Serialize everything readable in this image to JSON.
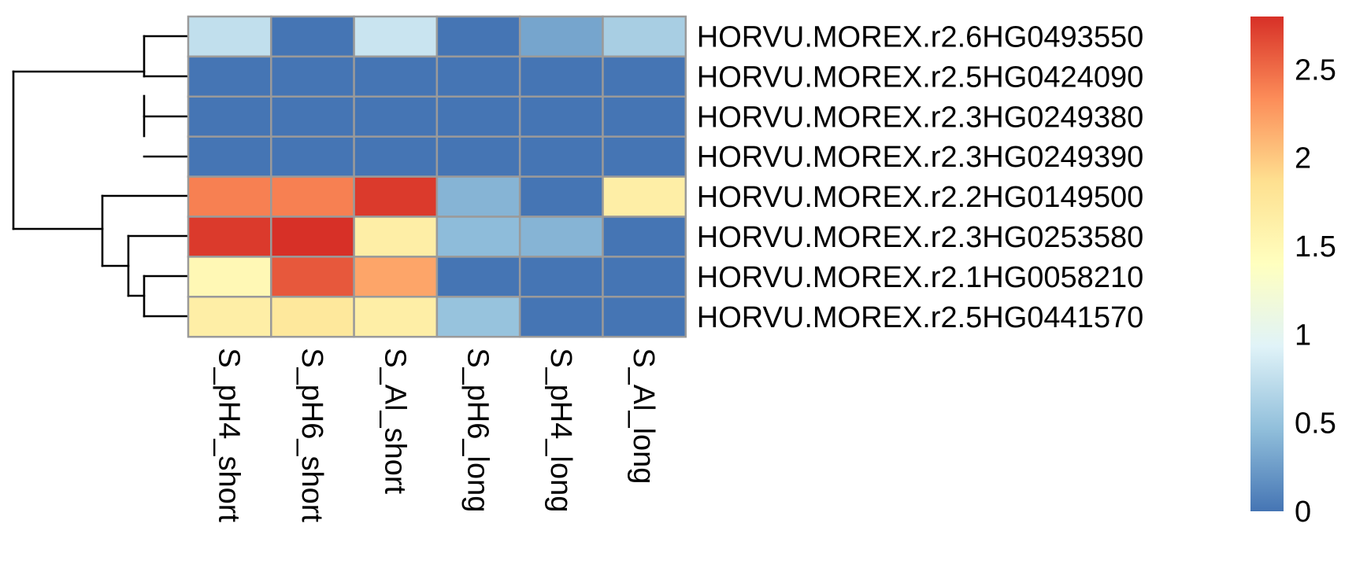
{
  "chart_data": {
    "type": "heatmap",
    "title": "",
    "rows": [
      "HORVU.MOREX.r2.6HG0493550",
      "HORVU.MOREX.r2.5HG0424090",
      "HORVU.MOREX.r2.3HG0249380",
      "HORVU.MOREX.r2.3HG0249390",
      "HORVU.MOREX.r2.2HG0149500",
      "HORVU.MOREX.r2.3HG0253580",
      "HORVU.MOREX.r2.1HG0058210",
      "HORVU.MOREX.r2.5HG0441570"
    ],
    "columns": [
      "S_pH4_short",
      "S_pH6_short",
      "S_Al_short",
      "S_pH6_long",
      "S_pH4_long",
      "S_Al_long"
    ],
    "values": [
      [
        0.75,
        0.0,
        0.8,
        0.0,
        0.3,
        0.6
      ],
      [
        0.0,
        0.0,
        0.0,
        0.0,
        0.0,
        0.0
      ],
      [
        0.0,
        0.0,
        0.0,
        0.0,
        0.0,
        0.0
      ],
      [
        0.0,
        0.0,
        0.0,
        0.0,
        0.0,
        0.0
      ],
      [
        2.4,
        2.4,
        2.75,
        0.4,
        0.0,
        1.65
      ],
      [
        2.75,
        2.8,
        1.65,
        0.45,
        0.4,
        0.0
      ],
      [
        1.5,
        2.6,
        2.2,
        0.0,
        0.0,
        0.0
      ],
      [
        1.65,
        1.75,
        1.65,
        0.5,
        0.0,
        0.0
      ]
    ],
    "color_scale": {
      "min": 0,
      "max": 2.8,
      "ticks": [
        "0",
        "0.5",
        "1",
        "1.5",
        "2",
        "2.5"
      ],
      "tick_values": [
        0,
        0.5,
        1,
        1.5,
        2,
        2.5
      ],
      "colors": [
        "#4575b4",
        "#91bfdb",
        "#e0f3f8",
        "#ffffbf",
        "#fee090",
        "#fc8d59",
        "#d73027"
      ]
    },
    "row_dendrogram": true,
    "legend_position": "right",
    "grid": true
  }
}
